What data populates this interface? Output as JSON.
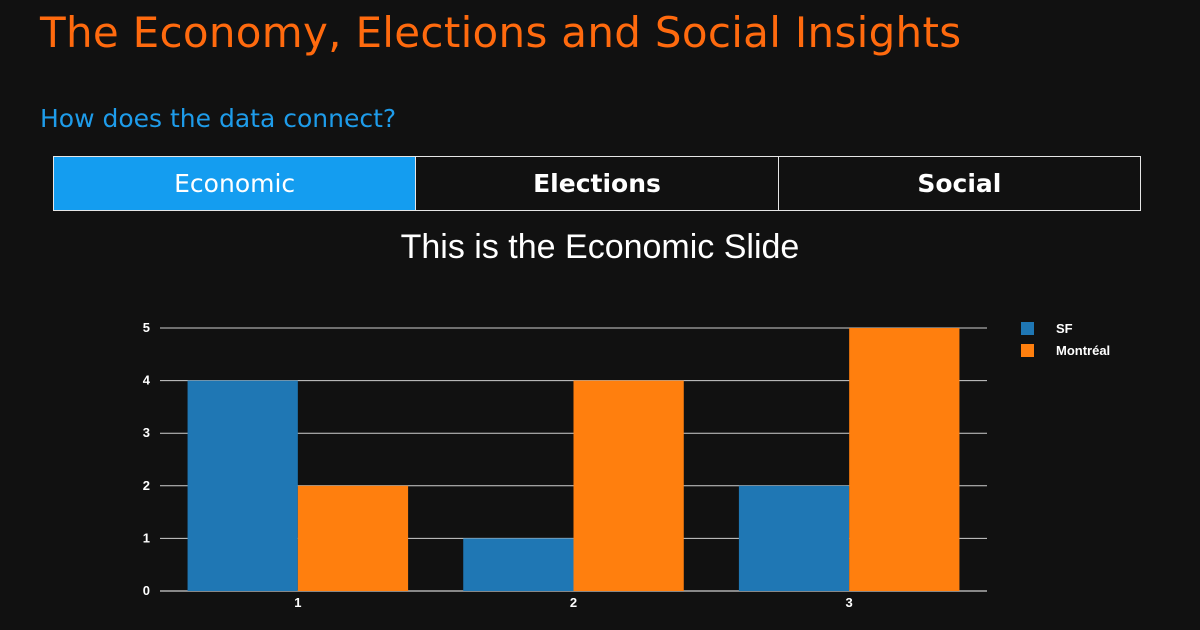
{
  "header": {
    "title": "The Economy, Elections and Social Insights",
    "subtitle": "How does the data connect?"
  },
  "tabs": [
    {
      "label": "Economic",
      "active": true
    },
    {
      "label": "Elections",
      "active": false
    },
    {
      "label": "Social",
      "active": false
    }
  ],
  "colors": {
    "title": "#ff6a0e",
    "subtitle": "#1e9cea",
    "active_tab": "#149df0",
    "background": "#111111"
  },
  "chart_data": {
    "type": "bar",
    "title": "This is the Economic Slide",
    "categories": [
      "1",
      "2",
      "3"
    ],
    "series": [
      {
        "name": "SF",
        "values": [
          4,
          1,
          2
        ],
        "color": "#1f77b4"
      },
      {
        "name": "Montréal",
        "values": [
          2,
          4,
          5
        ],
        "color": "#ff7f0e"
      }
    ],
    "ylim": [
      0,
      5
    ],
    "yticks": [
      0,
      1,
      2,
      3,
      4,
      5
    ],
    "grid": true,
    "legend": "top-right"
  }
}
